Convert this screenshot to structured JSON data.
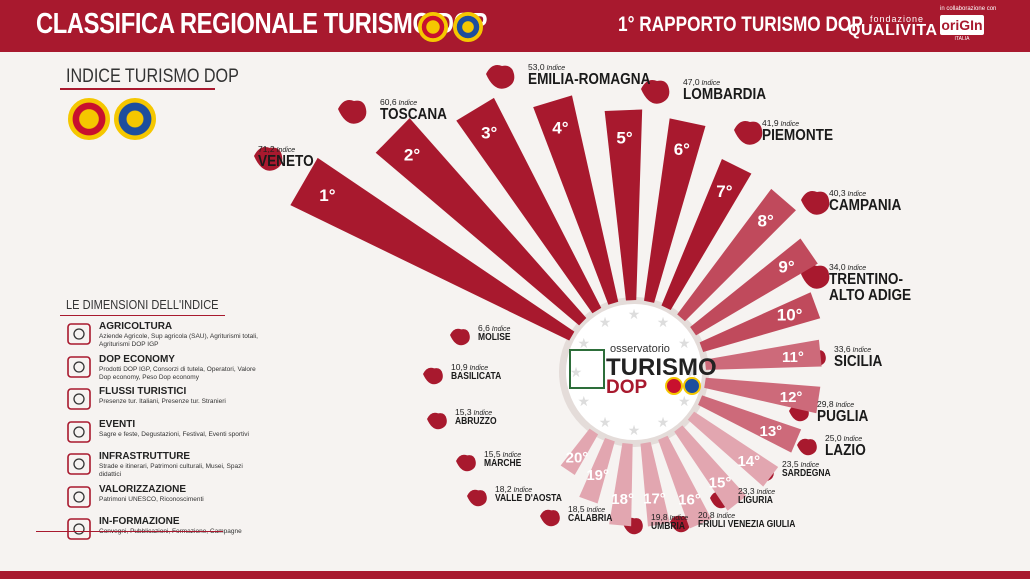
{
  "header": {
    "title": "CLASSIFICA REGIONALE TURISMO DOP",
    "report": "1° RAPPORTO TURISMO DOP",
    "brand_small": "fondazione",
    "brand": "QUALIVITA",
    "collab": "in collaborazione con",
    "partner": "oriGIn",
    "partner_sub": "ITALIA"
  },
  "left": {
    "index_title": "INDICE TURISMO DOP",
    "dims_title": "LE DIMENSIONI DELL'INDICE",
    "dimensions": [
      {
        "name": "AGRICOLTURA",
        "icon": "tractor-icon",
        "desc": "Aziende Agricole, Sup agricola (SAU), Agriturismi totali, Agriturismi DOP IGP"
      },
      {
        "name": "DOP ECONOMY",
        "icon": "factory-icon",
        "desc": "Prodotti DOP IGP, Consorzi di tutela, Operatori, Valore Dop economy, Peso Dop economy"
      },
      {
        "name": "FLUSSI TURISTICI",
        "icon": "globe-icon",
        "desc": "Presenze tur. Italiani, Presenze tur. Stranieri"
      },
      {
        "name": "EVENTI",
        "icon": "calendar-icon",
        "desc": "Sagre e feste, Degustazioni, Festival, Eventi sportivi"
      },
      {
        "name": "INFRASTRUTTURE",
        "icon": "map-pin-icon",
        "desc": "Strade e itinerari, Patrimoni culturali, Musei, Spazi didattici"
      },
      {
        "name": "VALORIZZAZIONE",
        "icon": "medal-icon",
        "desc": "Patrimoni UNESCO, Riconoscimenti"
      },
      {
        "name": "IN-FORMAZIONE",
        "icon": "people-icon",
        "desc": "Convegni, Pubblicazioni, Formazione, Campagne"
      }
    ]
  },
  "center": {
    "small": "osservatorio",
    "big": "TURISMO",
    "dop": "DOP"
  },
  "index_word": "Indice",
  "colors": {
    "dark": "#a8192e",
    "mid": "#c04a5c",
    "light": "#e2a6b0"
  },
  "chart_data": {
    "type": "bar",
    "title": "CLASSIFICA REGIONALE TURISMO DOP",
    "ranks": [
      "1°",
      "2°",
      "3°",
      "4°",
      "5°",
      "6°",
      "7°",
      "8°",
      "9°",
      "10°",
      "11°",
      "12°",
      "13°",
      "14°",
      "15°",
      "16°",
      "17°",
      "18°",
      "19°",
      "20°"
    ],
    "categories": [
      "VENETO",
      "TOSCANA",
      "EMILIA-ROMAGNA",
      "LOMBARDIA",
      "PIEMONTE",
      "CAMPANIA",
      "TRENTINO-ALTO ADIGE",
      "SICILIA",
      "PUGLIA",
      "LAZIO",
      "SARDEGNA",
      "LIGURIA",
      "FRIULI VENEZIA GIULIA",
      "UMBRIA",
      "CALABRIA",
      "VALLE D'AOSTA",
      "MARCHE",
      "ABRUZZO",
      "BASILICATA",
      "MOLISE"
    ],
    "values": [
      71.2,
      60.6,
      53.0,
      47.0,
      41.9,
      40.3,
      34.0,
      33.6,
      29.8,
      25.0,
      23.5,
      23.3,
      20.8,
      19.8,
      18.5,
      18.2,
      15.5,
      15.3,
      10.9,
      6.6
    ],
    "value_labels": [
      "71,2",
      "60,6",
      "53,0",
      "47,0",
      "41,9",
      "40,3",
      "34,0",
      "33,6",
      "29,8",
      "25,0",
      "23,5",
      "23,3",
      "20,8",
      "19,8",
      "18,5",
      "18,2",
      "15,5",
      "15,3",
      "10,9",
      "6,6"
    ]
  }
}
